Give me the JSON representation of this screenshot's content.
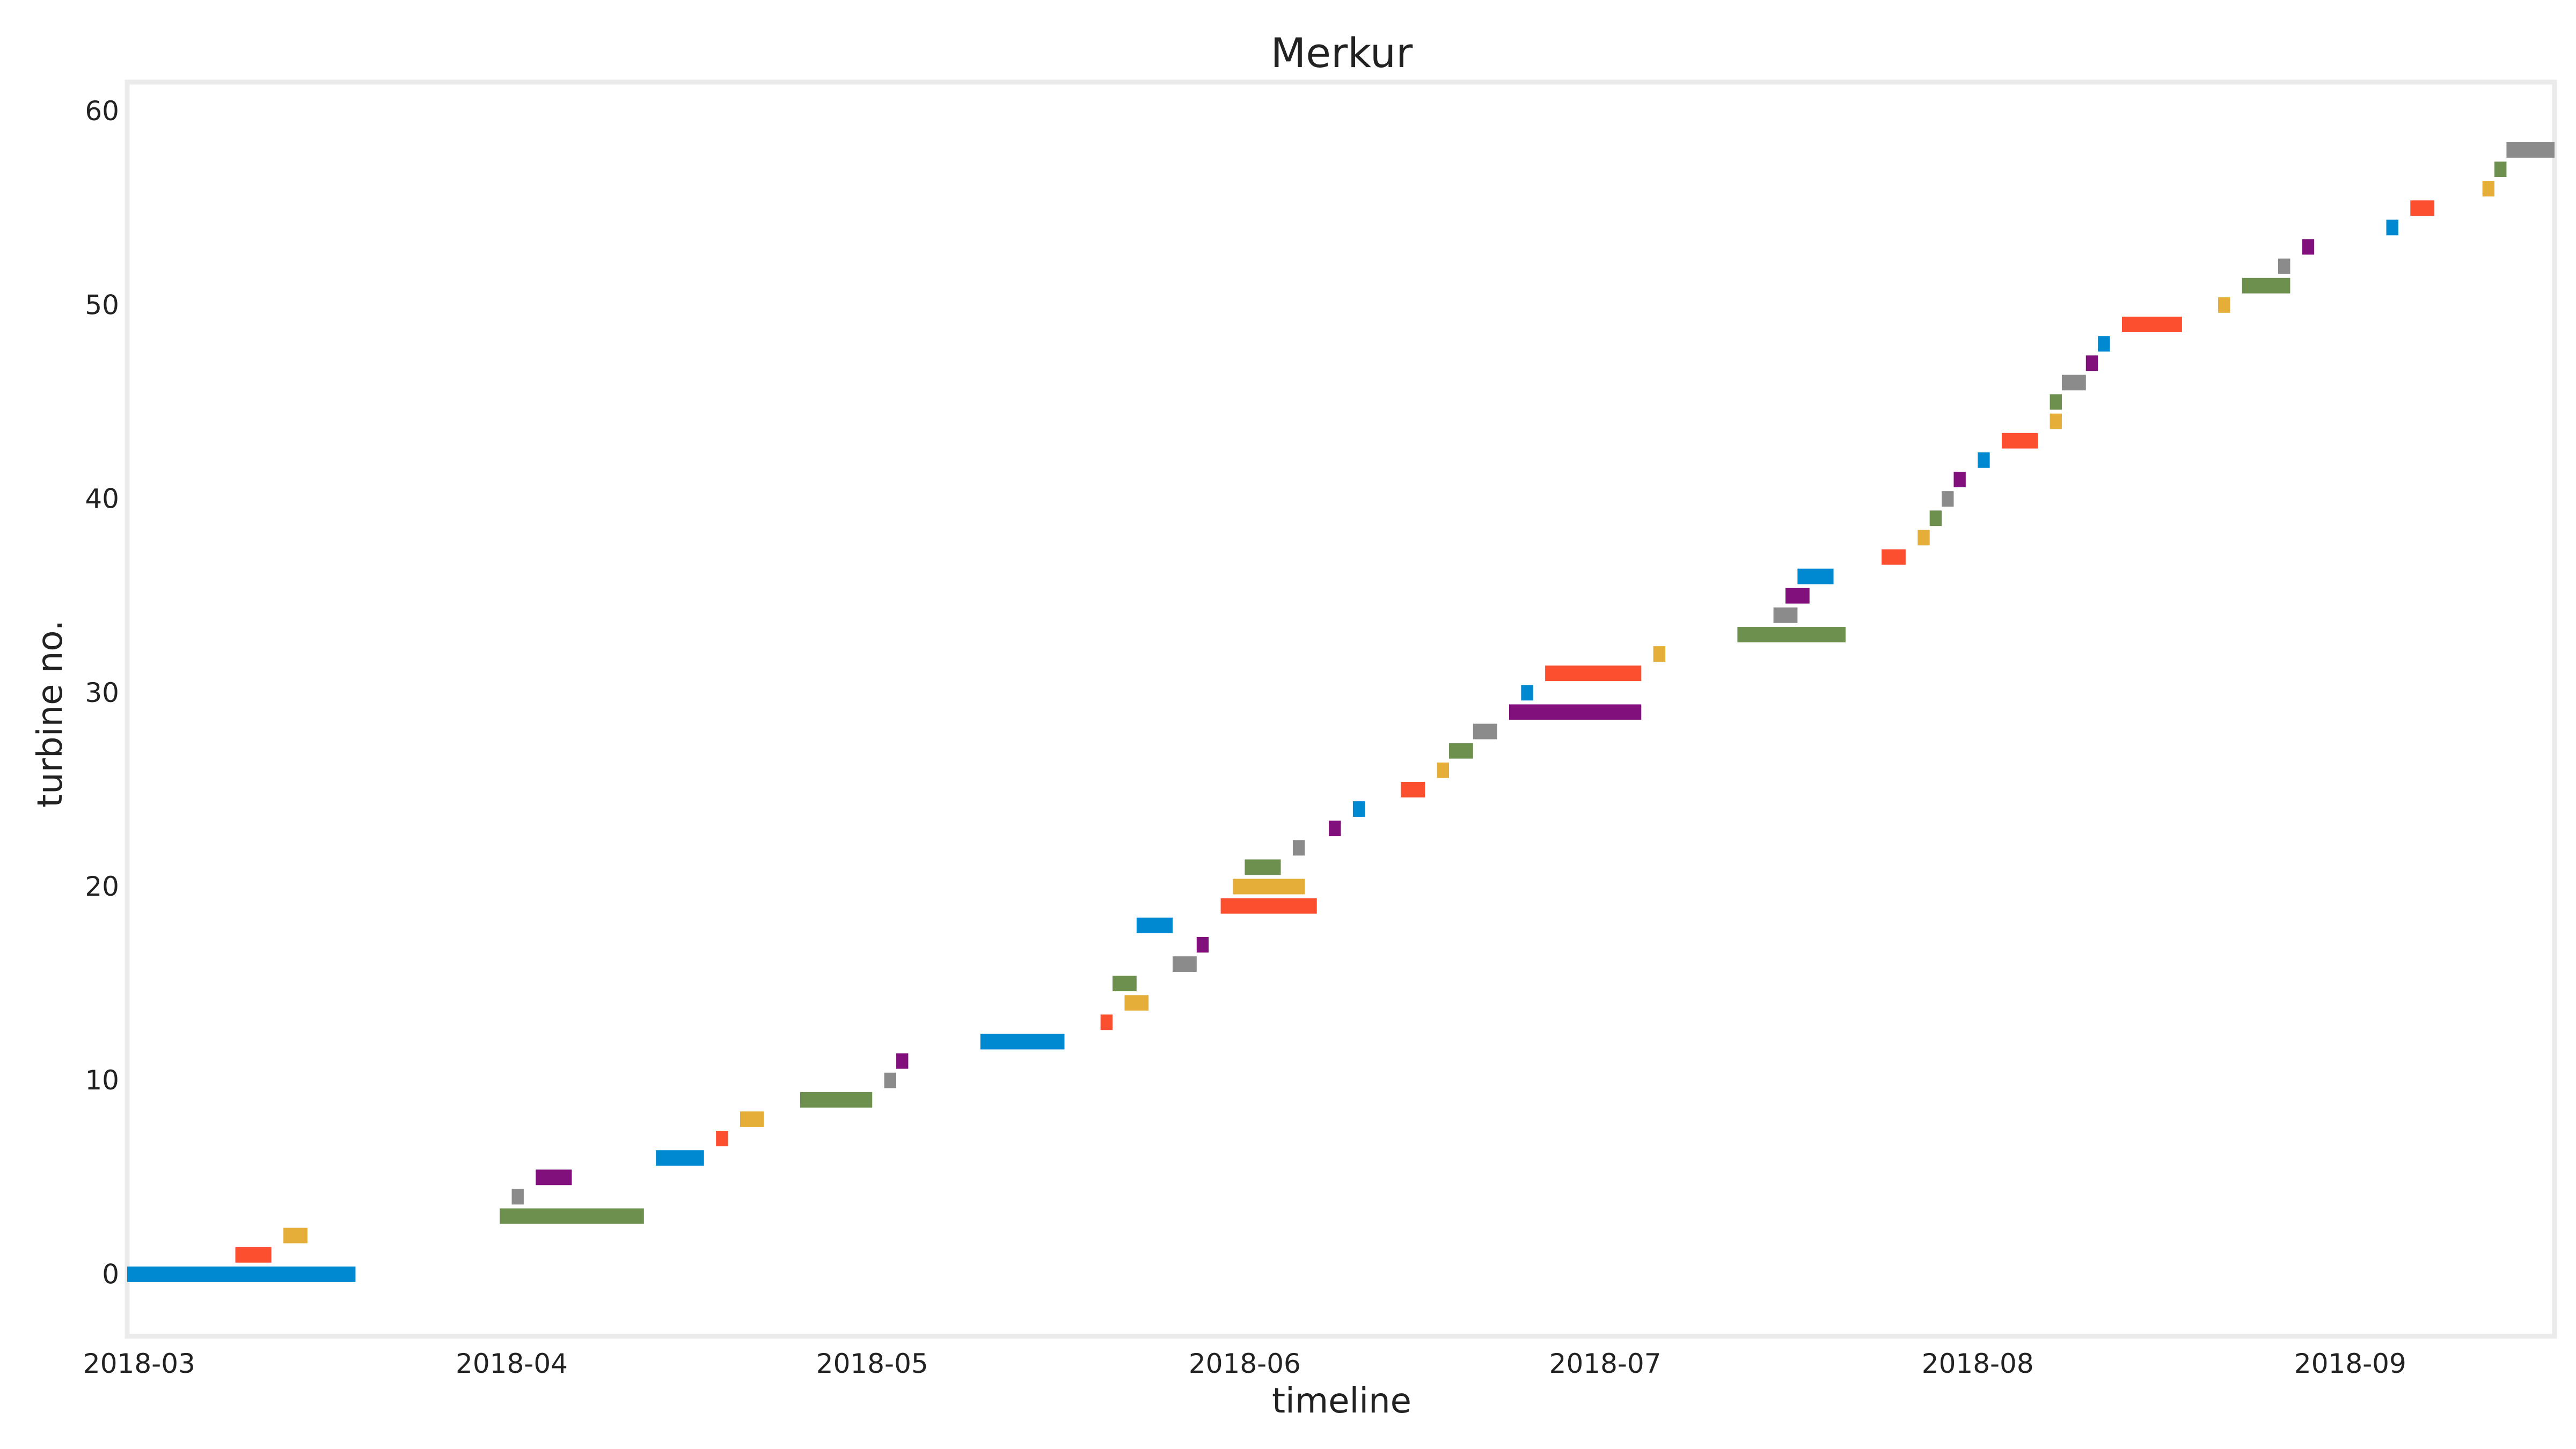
{
  "chart_data": {
    "type": "bar",
    "orientation": "horizontal-gantt",
    "title": "Merkur",
    "xlabel": "timeline",
    "ylabel": "turbine no.",
    "xlim": [
      "2018-02-28",
      "2018-09-18"
    ],
    "ylim": [
      -3.2,
      61.5
    ],
    "x_ticks": [
      "2018-03",
      "2018-04",
      "2018-05",
      "2018-06",
      "2018-07",
      "2018-08",
      "2018-09"
    ],
    "y_ticks": [
      0,
      10,
      20,
      30,
      40,
      50,
      60
    ],
    "grid": false,
    "legend": "none",
    "series": [
      {
        "color": "#0088d0",
        "bars": [
          {
            "turbine": 0,
            "start": "2018-02-28",
            "end": "2018-03-19"
          },
          {
            "turbine": 6,
            "start": "2018-04-13",
            "end": "2018-04-17"
          },
          {
            "turbine": 12,
            "start": "2018-05-10",
            "end": "2018-05-17"
          },
          {
            "turbine": 18,
            "start": "2018-05-23",
            "end": "2018-05-26"
          },
          {
            "turbine": 24,
            "start": "2018-06-10",
            "end": "2018-06-11"
          },
          {
            "turbine": 30,
            "start": "2018-06-24",
            "end": "2018-06-25"
          },
          {
            "turbine": 36,
            "start": "2018-07-17",
            "end": "2018-07-20"
          },
          {
            "turbine": 42,
            "start": "2018-08-01",
            "end": "2018-08-02"
          },
          {
            "turbine": 48,
            "start": "2018-08-11",
            "end": "2018-08-12"
          },
          {
            "turbine": 54,
            "start": "2018-09-04",
            "end": "2018-09-05"
          }
        ]
      },
      {
        "color": "#fc4f30",
        "bars": [
          {
            "turbine": 1,
            "start": "2018-03-09",
            "end": "2018-03-12"
          },
          {
            "turbine": 7,
            "start": "2018-04-18",
            "end": "2018-04-19"
          },
          {
            "turbine": 13,
            "start": "2018-05-20",
            "end": "2018-05-21"
          },
          {
            "turbine": 19,
            "start": "2018-05-30",
            "end": "2018-06-07"
          },
          {
            "turbine": 25,
            "start": "2018-06-14",
            "end": "2018-06-16"
          },
          {
            "turbine": 31,
            "start": "2018-06-26",
            "end": "2018-07-04"
          },
          {
            "turbine": 37,
            "start": "2018-07-24",
            "end": "2018-07-26"
          },
          {
            "turbine": 43,
            "start": "2018-08-03",
            "end": "2018-08-06"
          },
          {
            "turbine": 49,
            "start": "2018-08-13",
            "end": "2018-08-18"
          },
          {
            "turbine": 55,
            "start": "2018-09-06",
            "end": "2018-09-08"
          }
        ]
      },
      {
        "color": "#e5ae38",
        "bars": [
          {
            "turbine": 2,
            "start": "2018-03-13",
            "end": "2018-03-15"
          },
          {
            "turbine": 8,
            "start": "2018-04-20",
            "end": "2018-04-22"
          },
          {
            "turbine": 14,
            "start": "2018-05-22",
            "end": "2018-05-24"
          },
          {
            "turbine": 20,
            "start": "2018-05-31",
            "end": "2018-06-06"
          },
          {
            "turbine": 26,
            "start": "2018-06-17",
            "end": "2018-06-18"
          },
          {
            "turbine": 32,
            "start": "2018-07-05",
            "end": "2018-07-06"
          },
          {
            "turbine": 38,
            "start": "2018-07-27",
            "end": "2018-07-28"
          },
          {
            "turbine": 44,
            "start": "2018-08-07",
            "end": "2018-08-08"
          },
          {
            "turbine": 50,
            "start": "2018-08-21",
            "end": "2018-08-22"
          },
          {
            "turbine": 56,
            "start": "2018-09-12",
            "end": "2018-09-13"
          }
        ]
      },
      {
        "color": "#6d904f",
        "bars": [
          {
            "turbine": 3,
            "start": "2018-03-31",
            "end": "2018-04-12"
          },
          {
            "turbine": 9,
            "start": "2018-04-25",
            "end": "2018-05-01"
          },
          {
            "turbine": 15,
            "start": "2018-05-21",
            "end": "2018-05-23"
          },
          {
            "turbine": 21,
            "start": "2018-06-01",
            "end": "2018-06-04"
          },
          {
            "turbine": 27,
            "start": "2018-06-18",
            "end": "2018-06-20"
          },
          {
            "turbine": 33,
            "start": "2018-07-12",
            "end": "2018-07-21"
          },
          {
            "turbine": 39,
            "start": "2018-07-28",
            "end": "2018-07-29"
          },
          {
            "turbine": 45,
            "start": "2018-08-07",
            "end": "2018-08-08"
          },
          {
            "turbine": 51,
            "start": "2018-08-23",
            "end": "2018-08-27"
          },
          {
            "turbine": 57,
            "start": "2018-09-13",
            "end": "2018-09-14"
          }
        ]
      },
      {
        "color": "#8b8b8b",
        "bars": [
          {
            "turbine": 4,
            "start": "2018-04-01",
            "end": "2018-04-02"
          },
          {
            "turbine": 10,
            "start": "2018-05-02",
            "end": "2018-05-03"
          },
          {
            "turbine": 16,
            "start": "2018-05-26",
            "end": "2018-05-28"
          },
          {
            "turbine": 22,
            "start": "2018-06-05",
            "end": "2018-06-06"
          },
          {
            "turbine": 28,
            "start": "2018-06-20",
            "end": "2018-06-22"
          },
          {
            "turbine": 34,
            "start": "2018-07-15",
            "end": "2018-07-17"
          },
          {
            "turbine": 40,
            "start": "2018-07-29",
            "end": "2018-07-30"
          },
          {
            "turbine": 46,
            "start": "2018-08-08",
            "end": "2018-08-10"
          },
          {
            "turbine": 52,
            "start": "2018-08-26",
            "end": "2018-08-27"
          },
          {
            "turbine": 58,
            "start": "2018-09-14",
            "end": "2018-09-18"
          }
        ]
      },
      {
        "color": "#810f7c",
        "bars": [
          {
            "turbine": 5,
            "start": "2018-04-03",
            "end": "2018-04-06"
          },
          {
            "turbine": 11,
            "start": "2018-05-03",
            "end": "2018-05-04"
          },
          {
            "turbine": 17,
            "start": "2018-05-28",
            "end": "2018-05-29"
          },
          {
            "turbine": 23,
            "start": "2018-06-08",
            "end": "2018-06-09"
          },
          {
            "turbine": 29,
            "start": "2018-06-23",
            "end": "2018-07-04"
          },
          {
            "turbine": 35,
            "start": "2018-07-16",
            "end": "2018-07-18"
          },
          {
            "turbine": 41,
            "start": "2018-07-30",
            "end": "2018-07-31"
          },
          {
            "turbine": 47,
            "start": "2018-08-10",
            "end": "2018-08-11"
          },
          {
            "turbine": 53,
            "start": "2018-08-28",
            "end": "2018-08-29"
          }
        ]
      }
    ]
  }
}
